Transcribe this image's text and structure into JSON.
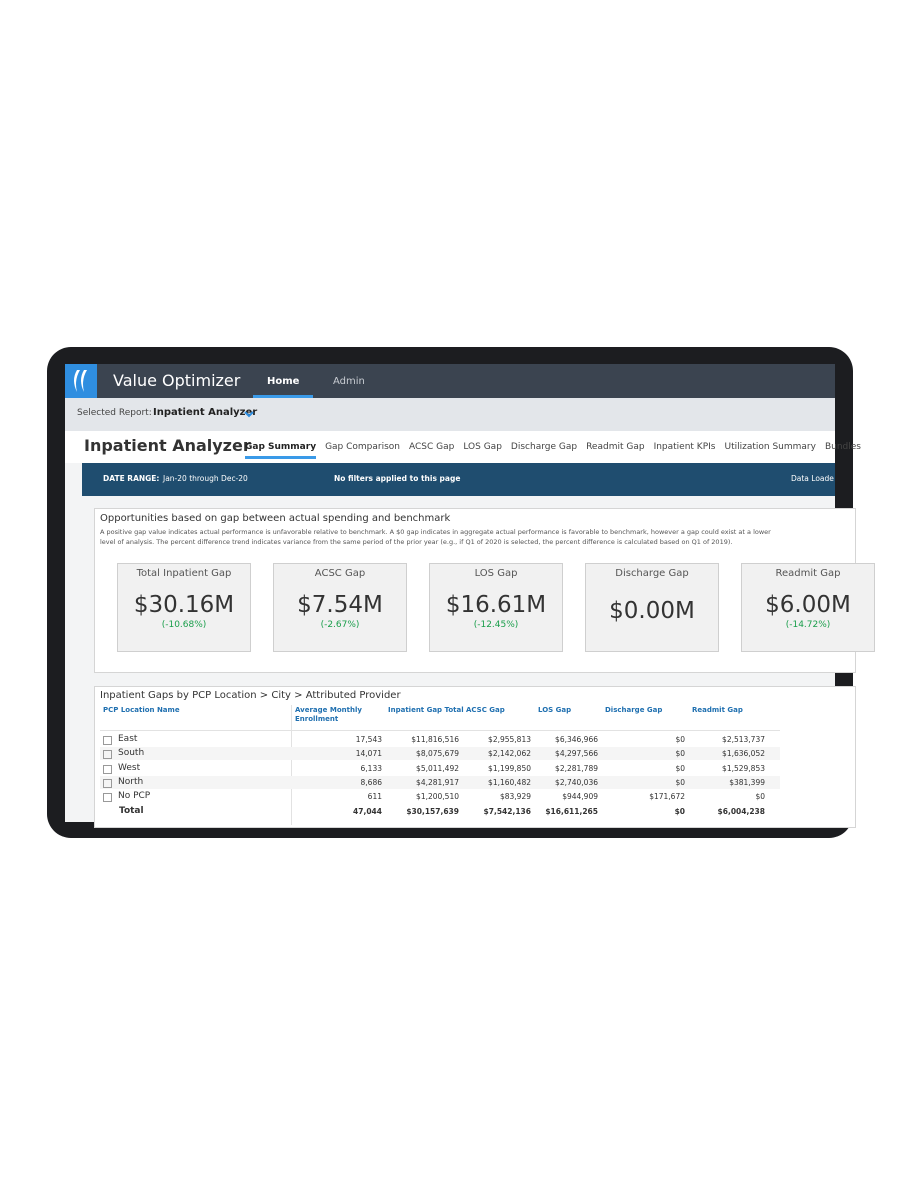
{
  "app": {
    "title": "Value Optimizer",
    "nav": [
      "Home",
      "Admin"
    ]
  },
  "report_bar": {
    "label": "Selected Report:",
    "value": "Inpatient Analyzer"
  },
  "page": {
    "title": "Inpatient Analyzer",
    "tabs": [
      "Gap Summary",
      "Gap Comparison",
      "ACSC Gap",
      "LOS Gap",
      "Discharge Gap",
      "Readmit Gap",
      "Inpatient KPIs",
      "Utilization Summary",
      "Bundles"
    ]
  },
  "filter_bar": {
    "date_label": "DATE RANGE:",
    "date_value": "Jan-20 through Dec-20",
    "filters": "No filters applied to this page",
    "data_loaded": "Data Loade"
  },
  "summary": {
    "title": "Opportunities based on gap between actual spending and benchmark",
    "description": [
      "A positive gap value indicates actual performance is unfavorable relative to benchmark. A $0 gap indicates in aggregate actual performance is favorable to benchmark, however a gap could exist at a lower",
      "level of analysis. The percent difference trend indicates variance from the same period of the prior year (e.g., if Q1 of 2020 is selected, the percent difference is calculated based on Q1 of 2019)."
    ],
    "tiles": [
      {
        "label": "Total Inpatient Gap",
        "value": "$30.16M",
        "change": "(-10.68%)"
      },
      {
        "label": "ACSC Gap",
        "value": "$7.54M",
        "change": "(-2.67%)"
      },
      {
        "label": "LOS Gap",
        "value": "$16.61M",
        "change": "(-12.45%)"
      },
      {
        "label": "Discharge Gap",
        "value": "$0.00M"
      },
      {
        "label": "Readmit Gap",
        "value": "$6.00M",
        "change": "(-14.72%)"
      }
    ]
  },
  "table": {
    "title": "Inpatient Gaps by PCP Location > City > Attributed Provider",
    "columns": [
      "PCP Location Name",
      "Average Monthly Enrollment",
      "Inpatient Gap Total",
      "ACSC Gap",
      "LOS Gap",
      "Discharge Gap",
      "Readmit Gap"
    ],
    "rows": [
      [
        "East",
        "17,543",
        "$11,816,516",
        "$2,955,813",
        "$6,346,966",
        "$0",
        "$2,513,737"
      ],
      [
        "South",
        "14,071",
        "$8,075,679",
        "$2,142,062",
        "$4,297,566",
        "$0",
        "$1,636,052"
      ],
      [
        "West",
        "6,133",
        "$5,011,492",
        "$1,199,850",
        "$2,281,789",
        "$0",
        "$1,529,853"
      ],
      [
        "North",
        "8,686",
        "$4,281,917",
        "$1,160,482",
        "$2,740,036",
        "$0",
        "$381,399"
      ],
      [
        "No PCP",
        "611",
        "$1,200,510",
        "$83,929",
        "$944,909",
        "$171,672",
        "$0"
      ]
    ],
    "total": [
      "Total",
      "47,044",
      "$30,157,639",
      "$7,542,136",
      "$16,611,265",
      "$0",
      "$6,004,238"
    ]
  }
}
